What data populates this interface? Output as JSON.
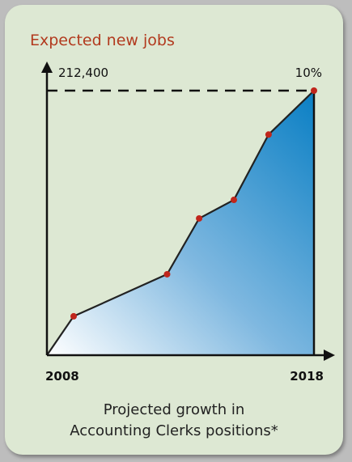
{
  "title": "Expected new jobs",
  "caption_line1": "Projected growth in",
  "caption_line2": "Accounting Clerks positions*",
  "colors": {
    "title": "#b23a1e",
    "marker": "#c0261c",
    "fill_top": "#0a7fc4",
    "fill_bottom": "#ffffff",
    "background": "#dde8d3"
  },
  "chart_data": {
    "type": "area",
    "x": [
      0,
      0.1,
      0.45,
      0.57,
      0.7,
      0.83,
      1
    ],
    "y": [
      0,
      0.147,
      0.306,
      0.517,
      0.587,
      0.834,
      1
    ],
    "x_start_label": "2008",
    "x_end_label": "2018",
    "y_top_label": "212,400",
    "end_value_label": "10%",
    "reference_line": "dashed line at maximum value",
    "grid": false
  }
}
